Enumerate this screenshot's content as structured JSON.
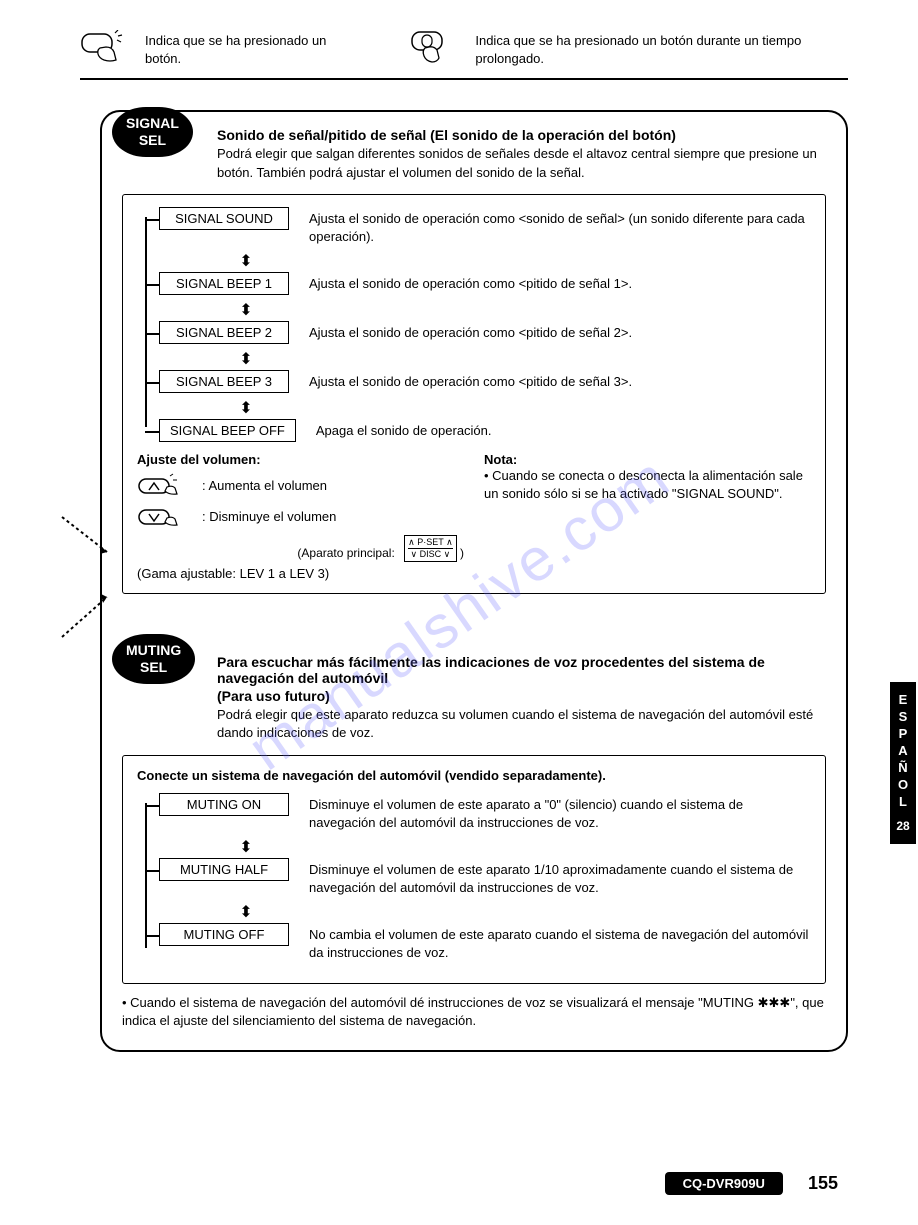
{
  "header": {
    "short_press": "Indica que se ha presionado un botón.",
    "long_press": "Indica que se ha presionado un botón durante un tiempo prolongado."
  },
  "signal": {
    "label_line1": "SIGNAL",
    "label_line2": "SEL",
    "title": "Sonido de señal/pitido de señal (El sonido de la operación del botón)",
    "desc": "Podrá elegir que salgan diferentes sonidos de señales desde el altavoz central siempre que presione un botón. También podrá ajustar el volumen del sonido de la señal.",
    "options": [
      {
        "label": "SIGNAL SOUND",
        "desc": "Ajusta el sonido de operación como <sonido de señal> (un sonido diferente para cada operación)."
      },
      {
        "label": "SIGNAL BEEP 1",
        "desc": "Ajusta el sonido de operación como <pitido de señal 1>."
      },
      {
        "label": "SIGNAL BEEP 2",
        "desc": "Ajusta el sonido de operación como <pitido de señal 2>."
      },
      {
        "label": "SIGNAL BEEP 3",
        "desc": "Ajusta el sonido de operación como <pitido de señal 3>."
      },
      {
        "label": "SIGNAL BEEP OFF",
        "desc": "Apaga el sonido de operación."
      }
    ],
    "volume": {
      "title": "Ajuste del volumen:",
      "up": ": Aumenta el volumen",
      "down": ": Disminuye el volumen",
      "aparato": "(Aparato principal:",
      "pset_top": "P·SET",
      "pset_bot": "DISC",
      "gama": "(Gama ajustable: LEV 1 a LEV 3)"
    },
    "nota": {
      "title": "Nota:",
      "text": "• Cuando se conecta o desconecta la alimentación sale un sonido sólo si se ha activado \"SIGNAL SOUND\"."
    }
  },
  "muting": {
    "label_line1": "MUTING",
    "label_line2": "SEL",
    "title": "Para escuchar más fácilmente las indicaciones de voz procedentes del sistema de navegación del automóvil",
    "subtitle": "(Para uso futuro)",
    "desc": "Podrá elegir que este aparato reduzca su volumen cuando el sistema de navegación del automóvil esté dando indicaciones de voz.",
    "connect": "Conecte un sistema de navegación del automóvil (vendido separadamente).",
    "options": [
      {
        "label": "MUTING ON",
        "desc": "Disminuye el volumen de este aparato a \"0\" (silencio) cuando el sistema de navegación del automóvil da instrucciones de voz."
      },
      {
        "label": "MUTING HALF",
        "desc": "Disminuye el volumen de este aparato 1/10 aproximadamente cuando el sistema de navegación del automóvil da instrucciones de voz."
      },
      {
        "label": "MUTING OFF",
        "desc": "No cambia el volumen de este aparato cuando el sistema de navegación del automóvil da instrucciones de voz."
      }
    ],
    "footnote": "• Cuando el sistema de navegación del automóvil dé instrucciones de voz se visualizará el mensaje \"MUTING ✱✱✱\", que indica el ajuste del silenciamiento del sistema de navegación."
  },
  "side": {
    "lang": "ESPAÑOL",
    "page": "28"
  },
  "footer": {
    "model": "CQ-DVR909U",
    "page": "155"
  },
  "watermark": "manualshive.com"
}
